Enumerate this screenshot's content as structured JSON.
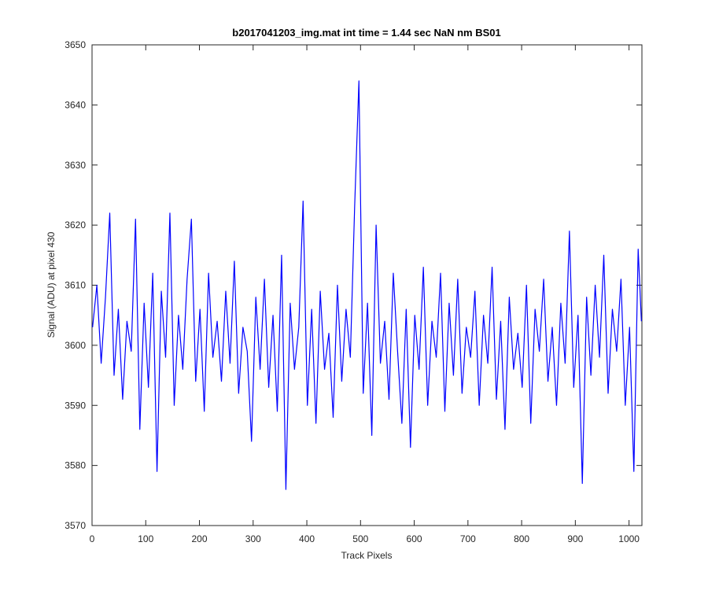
{
  "chart_data": {
    "type": "line",
    "title": "b2017041203_img.mat int time = 1.44 sec  NaN nm BS01",
    "x_label": "Track Pixels",
    "y_label": "Signal (ADU) at pixel 430",
    "xlim": [
      0,
      1024
    ],
    "ylim": [
      3570,
      3650
    ],
    "xticks": [
      0,
      100,
      200,
      300,
      400,
      500,
      600,
      700,
      800,
      900,
      1000
    ],
    "yticks": [
      3570,
      3580,
      3590,
      3600,
      3610,
      3620,
      3630,
      3640,
      3650
    ],
    "grid": false,
    "series": [
      {
        "color": "#0000ff",
        "x": [
          1,
          9,
          17,
          25,
          33,
          41,
          49,
          57,
          65,
          73,
          81,
          89,
          97,
          105,
          113,
          121,
          129,
          137,
          145,
          153,
          161,
          169,
          177,
          185,
          193,
          201,
          209,
          217,
          225,
          233,
          241,
          249,
          257,
          265,
          273,
          281,
          289,
          297,
          305,
          313,
          321,
          329,
          337,
          345,
          353,
          361,
          369,
          377,
          385,
          393,
          401,
          409,
          417,
          425,
          433,
          441,
          449,
          457,
          465,
          473,
          481,
          489,
          497,
          505,
          513,
          521,
          529,
          537,
          545,
          553,
          561,
          569,
          577,
          585,
          593,
          601,
          609,
          617,
          625,
          633,
          641,
          649,
          657,
          665,
          673,
          681,
          689,
          697,
          705,
          713,
          721,
          729,
          737,
          745,
          753,
          761,
          769,
          777,
          785,
          793,
          801,
          809,
          817,
          825,
          833,
          841,
          849,
          857,
          865,
          873,
          881,
          889,
          897,
          905,
          913,
          921,
          929,
          937,
          945,
          953,
          961,
          969,
          977,
          985,
          993,
          1001,
          1009,
          1017,
          1023
        ],
        "values": [
          3603,
          3610,
          3597,
          3608,
          3622,
          3595,
          3606,
          3591,
          3604,
          3599,
          3621,
          3586,
          3607,
          3593,
          3612,
          3579,
          3609,
          3598,
          3622,
          3590,
          3605,
          3596,
          3611,
          3621,
          3594,
          3606,
          3589,
          3612,
          3598,
          3604,
          3594,
          3609,
          3597,
          3614,
          3592,
          3603,
          3599,
          3584,
          3608,
          3596,
          3611,
          3593,
          3605,
          3589,
          3615,
          3576,
          3607,
          3596,
          3603,
          3624,
          3590,
          3606,
          3587,
          3609,
          3596,
          3602,
          3588,
          3610,
          3594,
          3606,
          3598,
          3623,
          3644,
          3592,
          3607,
          3585,
          3620,
          3597,
          3604,
          3591,
          3612,
          3599,
          3587,
          3606,
          3583,
          3605,
          3596,
          3613,
          3590,
          3604,
          3598,
          3612,
          3589,
          3607,
          3595,
          3611,
          3592,
          3603,
          3598,
          3609,
          3590,
          3605,
          3597,
          3613,
          3591,
          3604,
          3586,
          3608,
          3596,
          3602,
          3593,
          3610,
          3587,
          3606,
          3599,
          3611,
          3594,
          3603,
          3590,
          3607,
          3597,
          3619,
          3593,
          3605,
          3577,
          3608,
          3595,
          3610,
          3598,
          3615,
          3592,
          3606,
          3599,
          3611,
          3590,
          3603,
          3579,
          3616,
          3604
        ]
      }
    ]
  }
}
